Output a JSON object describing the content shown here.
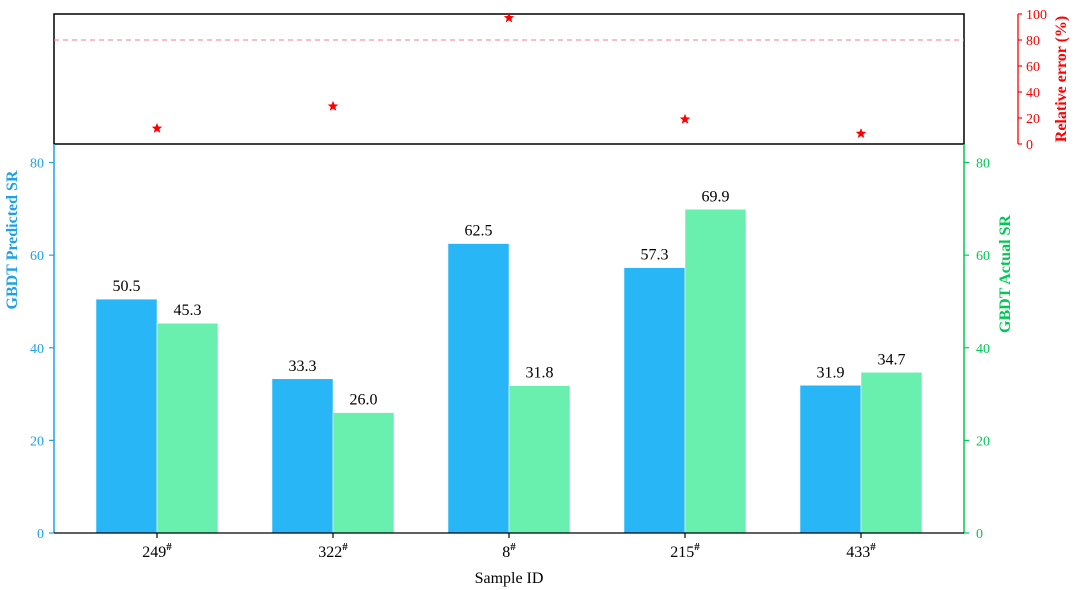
{
  "colors": {
    "predicted": "#29b6f6",
    "actual": "#69f0ae",
    "left_axis": "#1ea1e6",
    "right_axis": "#00c853",
    "error": "#ff0000",
    "frame": "#000000"
  },
  "chart_data": [
    {
      "type": "bar",
      "categories": [
        "249",
        "322",
        "8",
        "215",
        "433"
      ],
      "category_superscript": "#",
      "xlabel": "Sample ID",
      "series": [
        {
          "values": [
            50.5,
            33.3,
            62.5,
            57.3,
            31.9
          ],
          "axis": "left"
        },
        {
          "values": [
            45.3,
            26.0,
            31.8,
            69.9,
            34.7
          ],
          "axis": "right"
        }
      ],
      "value_labels": {
        "predicted": [
          "50.5",
          "33.3",
          "62.5",
          "57.3",
          "31.9"
        ],
        "actual": [
          "45.3",
          "26.0",
          "31.8",
          "69.9",
          "34.7"
        ]
      },
      "ylabel_left": "GBDT Predicted SR",
      "ylabel_right": "GBDT Actual SR",
      "ylim": [
        0,
        84
      ],
      "yticks": [
        0,
        20,
        40,
        60,
        80
      ],
      "legend": "none"
    },
    {
      "type": "scatter",
      "marker": "star",
      "categories": [
        "249",
        "322",
        "8",
        "215",
        "433"
      ],
      "values": [
        12,
        29,
        97,
        19,
        8
      ],
      "ylabel_right": "Relative error (%)",
      "ylim": [
        0,
        100
      ],
      "yticks": [
        0,
        20,
        40,
        60,
        80,
        100
      ],
      "reference_line": 80
    }
  ]
}
